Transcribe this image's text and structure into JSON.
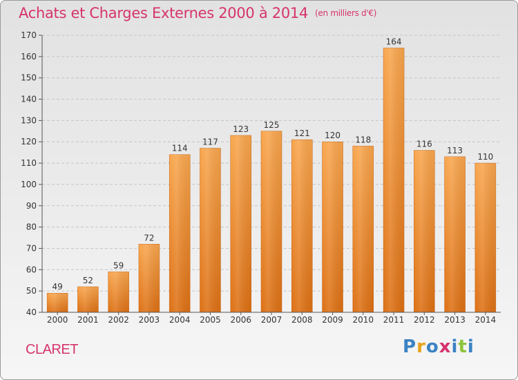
{
  "chart_data": {
    "type": "bar",
    "title": "Achats et Charges Externes 2000 à 2014",
    "subtitle": "(en milliers d'€)",
    "categories": [
      "2000",
      "2001",
      "2002",
      "2003",
      "2004",
      "2005",
      "2006",
      "2007",
      "2008",
      "2009",
      "2010",
      "2011",
      "2012",
      "2013",
      "2014"
    ],
    "values": [
      49,
      52,
      59,
      72,
      114,
      117,
      123,
      125,
      121,
      120,
      118,
      164,
      116,
      113,
      110
    ],
    "ylim": [
      40,
      170
    ],
    "yticks": [
      40,
      50,
      60,
      70,
      80,
      90,
      100,
      110,
      120,
      130,
      140,
      150,
      160,
      170
    ],
    "grid": true,
    "bar_color": "#f0922e"
  },
  "place_name": "CLARET",
  "logo": {
    "text": "Proxiti",
    "letter_colors": [
      "#3b82c4",
      "#e8a21a",
      "#3b82c4",
      "#d6336c",
      "#3b82c4",
      "#8cc43c",
      "#3b82c4"
    ]
  }
}
